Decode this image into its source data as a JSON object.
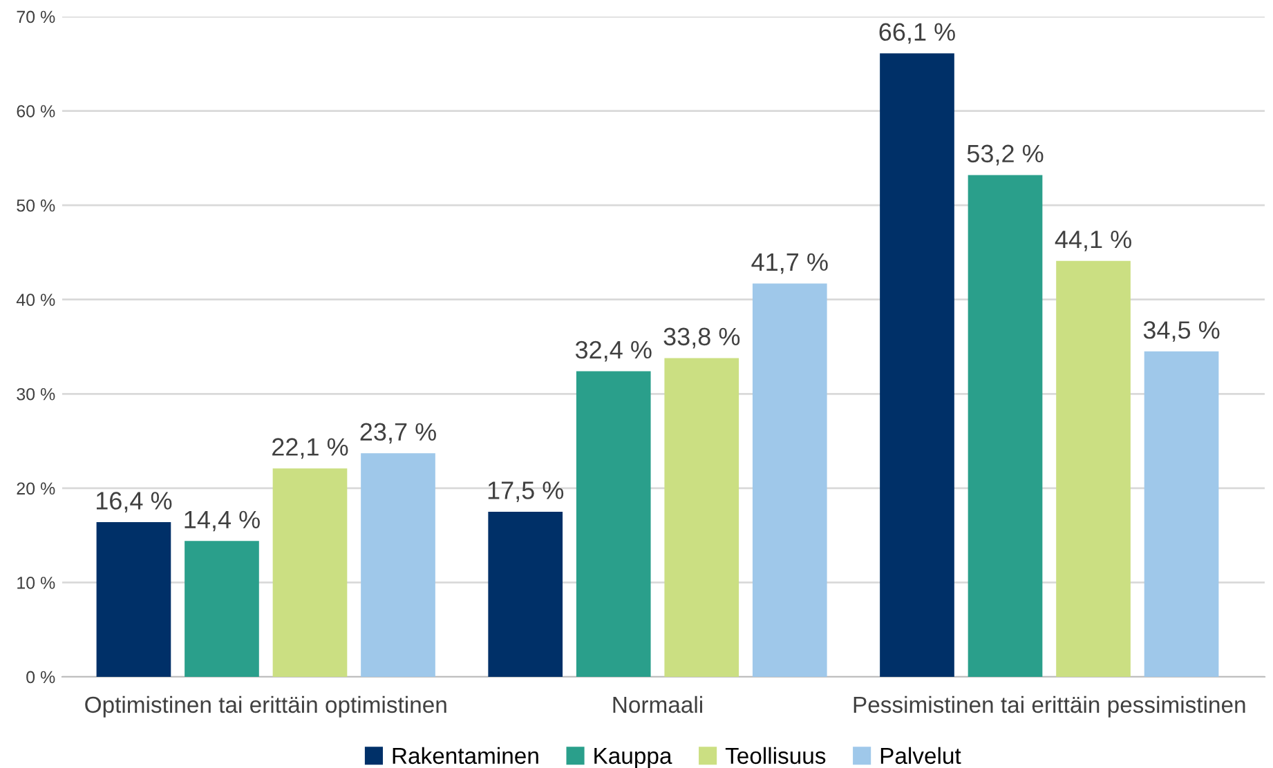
{
  "chart_data": {
    "type": "bar",
    "categories": [
      "Optimistinen tai erittäin optimistinen",
      "Normaali",
      "Pessimistinen tai erittäin pessimistinen"
    ],
    "series": [
      {
        "name": "Rakentaminen",
        "color": "#003068",
        "values": [
          16.4,
          17.5,
          66.1
        ],
        "value_labels": [
          "16,4 %",
          "17,5 %",
          "66,1 %"
        ]
      },
      {
        "name": "Kauppa",
        "color": "#2a9f8b",
        "values": [
          14.4,
          32.4,
          53.2
        ],
        "value_labels": [
          "14,4 %",
          "32,4 %",
          "53,2 %"
        ]
      },
      {
        "name": "Teollisuus",
        "color": "#cbdf82",
        "values": [
          22.1,
          33.8,
          44.1
        ],
        "value_labels": [
          "22,1 %",
          "33,8 %",
          "44,1 %"
        ]
      },
      {
        "name": "Palvelut",
        "color": "#9fc8ea",
        "values": [
          23.7,
          41.7,
          34.5
        ],
        "value_labels": [
          "23,7 %",
          "41,7 %",
          "34,5 %"
        ]
      }
    ],
    "ylim": [
      0,
      70
    ],
    "yticks": [
      {
        "value": 0,
        "label": "0 %"
      },
      {
        "value": 10,
        "label": "10 %"
      },
      {
        "value": 20,
        "label": "20 %"
      },
      {
        "value": 30,
        "label": "30 %"
      },
      {
        "value": 40,
        "label": "40 %"
      },
      {
        "value": 50,
        "label": "50 %"
      },
      {
        "value": 60,
        "label": "60 %"
      },
      {
        "value": 70,
        "label": "70 %"
      }
    ],
    "grid": "y",
    "legend": "bottom"
  }
}
